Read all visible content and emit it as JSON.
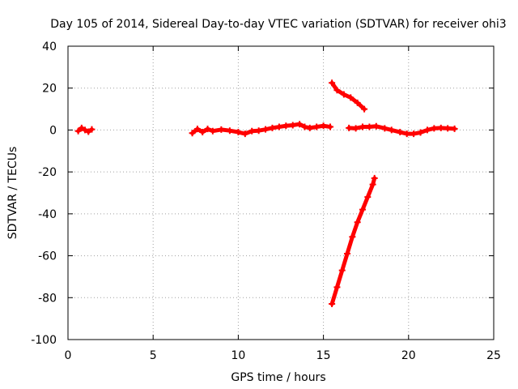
{
  "chart_data": {
    "type": "scatter",
    "title": "Day 105 of 2014, Sidereal Day-to-day VTEC variation (SDTVAR) for receiver ohi3",
    "xlabel": "GPS time / hours",
    "ylabel": "SDTVAR / TECUs",
    "xlim": [
      0,
      25
    ],
    "ylim": [
      -100,
      40
    ],
    "xticks": [
      0,
      5,
      10,
      15,
      20,
      25
    ],
    "yticks": [
      -100,
      -80,
      -60,
      -40,
      -20,
      0,
      20,
      40
    ],
    "grid": true,
    "marker": "plus",
    "color": "#ff0000",
    "series": [
      {
        "segments": [
          [
            [
              0.6,
              -0.5
            ],
            [
              0.8,
              1.0
            ],
            [
              1.0,
              0.0
            ],
            [
              1.2,
              -0.8
            ],
            [
              1.4,
              0.3
            ]
          ],
          [
            [
              7.3,
              -1.5
            ],
            [
              7.6,
              0.5
            ],
            [
              7.9,
              -1.0
            ],
            [
              8.2,
              0.5
            ],
            [
              8.5,
              -0.5
            ],
            [
              9.0,
              0.2
            ],
            [
              9.5,
              -0.3
            ],
            [
              10.0,
              -1.0
            ],
            [
              10.4,
              -1.8
            ],
            [
              10.8,
              -0.5
            ],
            [
              11.2,
              -0.3
            ],
            [
              11.6,
              0.3
            ],
            [
              12.0,
              1.0
            ],
            [
              12.4,
              1.5
            ],
            [
              12.8,
              2.0
            ],
            [
              13.2,
              2.3
            ],
            [
              13.6,
              2.8
            ],
            [
              13.9,
              1.5
            ],
            [
              14.2,
              1.0
            ],
            [
              14.6,
              1.5
            ],
            [
              15.0,
              2.0
            ],
            [
              15.4,
              1.5
            ]
          ],
          [
            [
              15.5,
              22.5
            ],
            [
              15.8,
              19.0
            ],
            [
              16.2,
              17.0
            ],
            [
              16.6,
              15.5
            ],
            [
              17.0,
              13.0
            ],
            [
              17.4,
              10.0
            ]
          ],
          [
            [
              16.5,
              1.0
            ],
            [
              16.9,
              0.8
            ],
            [
              17.3,
              1.5
            ],
            [
              17.7,
              1.5
            ],
            [
              18.1,
              1.8
            ],
            [
              18.6,
              0.8
            ],
            [
              19.0,
              0.0
            ],
            [
              19.5,
              -1.0
            ],
            [
              19.9,
              -1.8
            ],
            [
              20.3,
              -1.8
            ],
            [
              20.7,
              -1.2
            ],
            [
              21.1,
              0.0
            ],
            [
              21.5,
              0.8
            ],
            [
              21.9,
              1.0
            ],
            [
              22.3,
              0.8
            ],
            [
              22.7,
              0.6
            ]
          ],
          [
            [
              15.5,
              -83.0
            ],
            [
              15.8,
              -75.0
            ],
            [
              16.1,
              -67.0
            ],
            [
              16.4,
              -59.0
            ],
            [
              16.7,
              -51.0
            ],
            [
              17.0,
              -44.0
            ],
            [
              17.3,
              -38.0
            ],
            [
              17.6,
              -32.0
            ],
            [
              17.9,
              -26.0
            ],
            [
              18.0,
              -23.0
            ]
          ]
        ]
      }
    ]
  }
}
